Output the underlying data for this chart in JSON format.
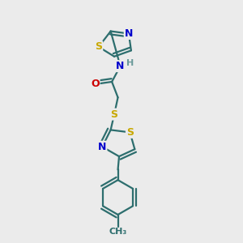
{
  "background_color": "#ebebeb",
  "bond_color": "#2d6e6e",
  "atom_colors": {
    "S": "#c8a800",
    "N": "#0000cc",
    "O": "#cc0000",
    "H": "#6a9a9a",
    "C": "#2d6e6e"
  },
  "bond_width": 1.6,
  "font_size_atom": 9,
  "font_size_small": 7.5
}
